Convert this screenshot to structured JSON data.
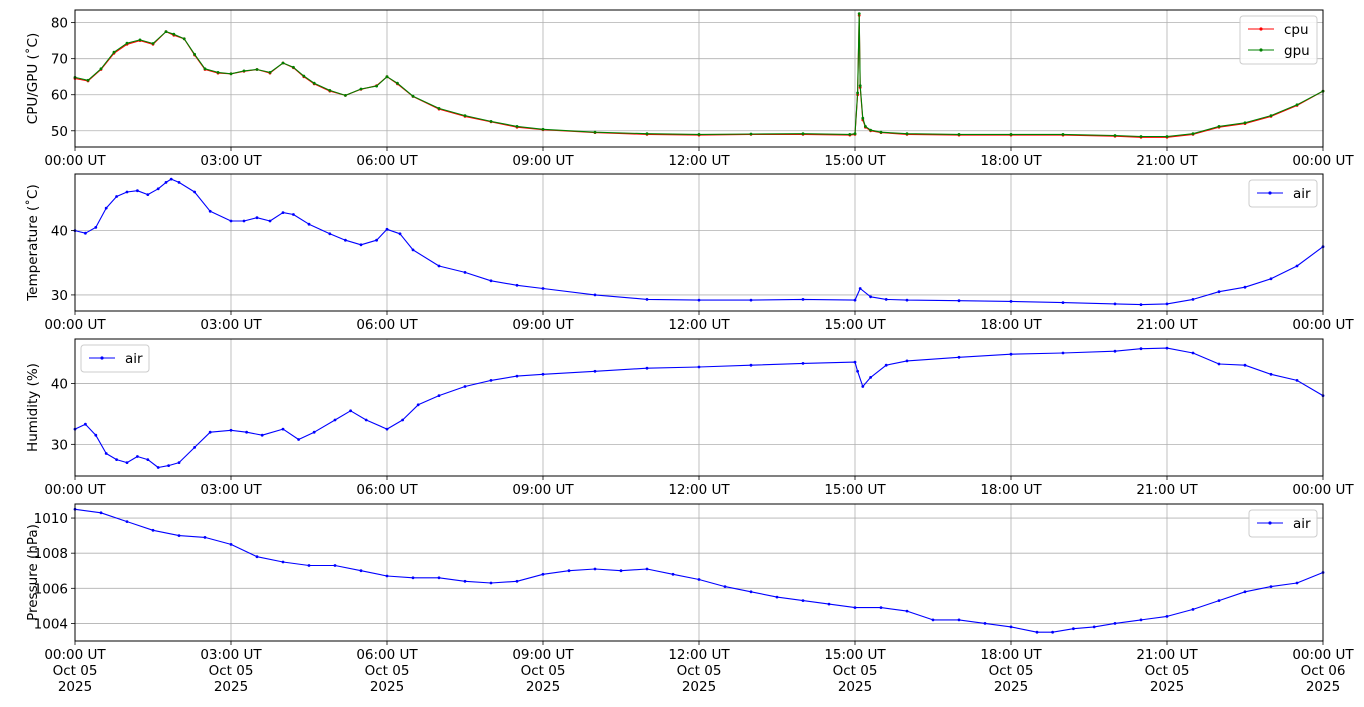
{
  "figure": {
    "background": "#ffffff"
  },
  "chart_data": [
    {
      "type": "line",
      "ylabel": "CPU/GPU (˚C)",
      "ylim": [
        45.5,
        83.5
      ],
      "yticks": [
        50,
        60,
        70,
        80
      ],
      "ytick_labels": [
        "50",
        "60",
        "70",
        "80"
      ],
      "xlim": [
        0,
        24
      ],
      "xticks": [
        0,
        3,
        6,
        9,
        12,
        15,
        18,
        21,
        24
      ],
      "xtick_labels": [
        "00:00 UT",
        "03:00 UT",
        "06:00 UT",
        "09:00 UT",
        "12:00 UT",
        "15:00 UT",
        "18:00 UT",
        "21:00 UT",
        "00:00 UT"
      ],
      "grid": true,
      "legend": "upper-right",
      "series": [
        {
          "name": "cpu",
          "color": "#ff0000",
          "x": [
            0,
            0.25,
            0.5,
            0.75,
            1.0,
            1.25,
            1.5,
            1.75,
            1.9,
            2.1,
            2.3,
            2.5,
            2.75,
            3.0,
            3.25,
            3.5,
            3.75,
            4.0,
            4.2,
            4.4,
            4.6,
            4.9,
            5.2,
            5.5,
            5.8,
            6.0,
            6.2,
            6.5,
            7.0,
            7.5,
            8.0,
            8.5,
            9.0,
            10.0,
            11.0,
            12.0,
            13.0,
            14.0,
            14.9,
            15.0,
            15.05,
            15.08,
            15.1,
            15.15,
            15.2,
            15.3,
            15.5,
            16.0,
            17.0,
            18.0,
            19.0,
            20.0,
            20.5,
            21.0,
            21.5,
            22.0,
            22.5,
            23.0,
            23.5,
            24.0
          ],
          "values": [
            64.5,
            63.8,
            67,
            71.5,
            74,
            75,
            74,
            77.5,
            76.5,
            75.5,
            71,
            67,
            66,
            65.8,
            66.5,
            67,
            66,
            68.8,
            67.5,
            65,
            63,
            61,
            59.8,
            61.5,
            62.5,
            65,
            63,
            59.5,
            56,
            54,
            52.5,
            51,
            50.3,
            49.5,
            49,
            48.8,
            49,
            49,
            48.8,
            49,
            60,
            82,
            62,
            53,
            51,
            50,
            49.5,
            49,
            48.8,
            48.8,
            48.8,
            48.5,
            48.2,
            48.2,
            49,
            51,
            52,
            54,
            57,
            61
          ]
        },
        {
          "name": "gpu",
          "color": "#008000",
          "x": [
            0,
            0.25,
            0.5,
            0.75,
            1.0,
            1.25,
            1.5,
            1.75,
            1.9,
            2.1,
            2.3,
            2.5,
            2.75,
            3.0,
            3.25,
            3.5,
            3.75,
            4.0,
            4.2,
            4.4,
            4.6,
            4.9,
            5.2,
            5.5,
            5.8,
            6.0,
            6.2,
            6.5,
            7.0,
            7.5,
            8.0,
            8.5,
            9.0,
            10.0,
            11.0,
            12.0,
            13.0,
            14.0,
            14.9,
            15.0,
            15.05,
            15.08,
            15.1,
            15.15,
            15.2,
            15.3,
            15.5,
            16.0,
            17.0,
            18.0,
            19.0,
            20.0,
            20.5,
            21.0,
            21.5,
            22.0,
            22.5,
            23.0,
            23.5,
            24.0
          ],
          "values": [
            64.8,
            64,
            67.2,
            71.8,
            74.3,
            75.2,
            74.2,
            77.5,
            76.8,
            75.5,
            71.2,
            67.2,
            66.2,
            65.8,
            66.6,
            67,
            66.2,
            68.8,
            67.6,
            65.2,
            63.2,
            61.2,
            59.8,
            61.6,
            62.4,
            65,
            63.2,
            59.6,
            56.2,
            54.2,
            52.6,
            51.2,
            50.4,
            49.6,
            49.2,
            49,
            49.1,
            49.2,
            49,
            49.2,
            60.5,
            82.5,
            62.5,
            53.5,
            51.2,
            50.2,
            49.6,
            49.2,
            49,
            49,
            49,
            48.7,
            48.4,
            48.4,
            49.2,
            51.2,
            52.2,
            54.2,
            57.2,
            61
          ]
        }
      ]
    },
    {
      "type": "line",
      "ylabel": "Temperature (˚C)",
      "ylim": [
        27.5,
        48.8
      ],
      "yticks": [
        30,
        40
      ],
      "ytick_labels": [
        "30",
        "40"
      ],
      "xlim": [
        0,
        24
      ],
      "xticks": [
        0,
        3,
        6,
        9,
        12,
        15,
        18,
        21,
        24
      ],
      "xtick_labels": [
        "00:00 UT",
        "03:00 UT",
        "06:00 UT",
        "09:00 UT",
        "12:00 UT",
        "15:00 UT",
        "18:00 UT",
        "21:00 UT",
        "00:00 UT"
      ],
      "grid": true,
      "legend": "upper-right",
      "series": [
        {
          "name": "air",
          "color": "#0000ff",
          "x": [
            0,
            0.2,
            0.4,
            0.6,
            0.8,
            1.0,
            1.2,
            1.4,
            1.6,
            1.75,
            1.85,
            2.0,
            2.3,
            2.6,
            3.0,
            3.25,
            3.5,
            3.75,
            4.0,
            4.2,
            4.5,
            4.9,
            5.2,
            5.5,
            5.8,
            6.0,
            6.25,
            6.5,
            7.0,
            7.5,
            8.0,
            8.5,
            9.0,
            10.0,
            11.0,
            12.0,
            13.0,
            14.0,
            15.0,
            15.1,
            15.3,
            15.6,
            16.0,
            17.0,
            18.0,
            19.0,
            20.0,
            20.5,
            21.0,
            21.5,
            22.0,
            22.5,
            23.0,
            23.5,
            24.0
          ],
          "values": [
            40,
            39.6,
            40.5,
            43.5,
            45.3,
            46,
            46.2,
            45.6,
            46.5,
            47.5,
            48,
            47.5,
            46,
            43,
            41.5,
            41.5,
            42,
            41.5,
            42.8,
            42.5,
            41,
            39.5,
            38.5,
            37.8,
            38.5,
            40.2,
            39.5,
            37,
            34.5,
            33.5,
            32.2,
            31.5,
            31,
            30,
            29.3,
            29.2,
            29.2,
            29.3,
            29.2,
            31,
            29.7,
            29.3,
            29.2,
            29.1,
            29,
            28.8,
            28.6,
            28.5,
            28.6,
            29.3,
            30.5,
            31.2,
            32.5,
            34.5,
            37.5
          ]
        }
      ]
    },
    {
      "type": "line",
      "ylabel": "Humidity (%)",
      "ylim": [
        24.8,
        47.3
      ],
      "yticks": [
        30,
        40
      ],
      "ytick_labels": [
        "30",
        "40"
      ],
      "xlim": [
        0,
        24
      ],
      "xticks": [
        0,
        3,
        6,
        9,
        12,
        15,
        18,
        21,
        24
      ],
      "xtick_labels": [
        "00:00 UT",
        "03:00 UT",
        "06:00 UT",
        "09:00 UT",
        "12:00 UT",
        "15:00 UT",
        "18:00 UT",
        "21:00 UT",
        "00:00 UT"
      ],
      "grid": true,
      "legend": "upper-left",
      "series": [
        {
          "name": "air",
          "color": "#0000ff",
          "x": [
            0,
            0.2,
            0.4,
            0.6,
            0.8,
            1.0,
            1.2,
            1.4,
            1.6,
            1.8,
            2.0,
            2.3,
            2.6,
            3.0,
            3.3,
            3.6,
            4.0,
            4.3,
            4.6,
            5.0,
            5.3,
            5.6,
            6.0,
            6.3,
            6.6,
            7.0,
            7.5,
            8.0,
            8.5,
            9.0,
            10.0,
            11.0,
            12.0,
            13.0,
            14.0,
            15.0,
            15.05,
            15.15,
            15.3,
            15.6,
            16.0,
            17.0,
            18.0,
            19.0,
            20.0,
            20.5,
            21.0,
            21.5,
            22.0,
            22.5,
            23.0,
            23.5,
            24.0
          ],
          "values": [
            32.5,
            33.3,
            31.5,
            28.5,
            27.5,
            27,
            28,
            27.5,
            26.2,
            26.5,
            27,
            29.5,
            32,
            32.3,
            32,
            31.5,
            32.5,
            30.8,
            32,
            34,
            35.5,
            34,
            32.5,
            34,
            36.5,
            38,
            39.5,
            40.5,
            41.2,
            41.5,
            42,
            42.5,
            42.7,
            43,
            43.3,
            43.5,
            42,
            39.5,
            41,
            43,
            43.7,
            44.3,
            44.8,
            45,
            45.3,
            45.7,
            45.8,
            45,
            43.2,
            43,
            41.5,
            40.5,
            38
          ]
        }
      ]
    },
    {
      "type": "line",
      "ylabel": "Pressure (hPa)",
      "ylim": [
        1003,
        1010.8
      ],
      "yticks": [
        1004,
        1006,
        1008,
        1010
      ],
      "ytick_labels": [
        "1004",
        "1006",
        "1008",
        "1010"
      ],
      "xlim": [
        0,
        24
      ],
      "xticks": [
        0,
        3,
        6,
        9,
        12,
        15,
        18,
        21,
        24
      ],
      "xtick_labels": [
        "00:00 UT\nOct 05\n2025",
        "03:00 UT\nOct 05\n2025",
        "06:00 UT\nOct 05\n2025",
        "09:00 UT\nOct 05\n2025",
        "12:00 UT\nOct 05\n2025",
        "15:00 UT\nOct 05\n2025",
        "18:00 UT\nOct 05\n2025",
        "21:00 UT\nOct 05\n2025",
        "00:00 UT\nOct 06\n2025"
      ],
      "grid": true,
      "legend": "upper-right",
      "series": [
        {
          "name": "air",
          "color": "#0000ff",
          "x": [
            0,
            0.5,
            1.0,
            1.5,
            2.0,
            2.5,
            3.0,
            3.5,
            4.0,
            4.5,
            5.0,
            5.5,
            6.0,
            6.5,
            7.0,
            7.5,
            8.0,
            8.5,
            9.0,
            9.5,
            10.0,
            10.5,
            11.0,
            11.5,
            12.0,
            12.5,
            13.0,
            13.5,
            14.0,
            14.5,
            15.0,
            15.5,
            16.0,
            16.5,
            17.0,
            17.5,
            18.0,
            18.5,
            18.8,
            19.2,
            19.6,
            20.0,
            20.5,
            21.0,
            21.5,
            22.0,
            22.5,
            23.0,
            23.5,
            24.0
          ],
          "values": [
            1010.5,
            1010.3,
            1009.8,
            1009.3,
            1009,
            1008.9,
            1008.5,
            1007.8,
            1007.5,
            1007.3,
            1007.3,
            1007,
            1006.7,
            1006.6,
            1006.6,
            1006.4,
            1006.3,
            1006.4,
            1006.8,
            1007,
            1007.1,
            1007,
            1007.1,
            1006.8,
            1006.5,
            1006.1,
            1005.8,
            1005.5,
            1005.3,
            1005.1,
            1004.9,
            1004.9,
            1004.7,
            1004.2,
            1004.2,
            1004,
            1003.8,
            1003.5,
            1003.5,
            1003.7,
            1003.8,
            1004,
            1004.2,
            1004.4,
            1004.8,
            1005.3,
            1005.8,
            1006.1,
            1006.3,
            1006.9
          ]
        }
      ]
    }
  ]
}
